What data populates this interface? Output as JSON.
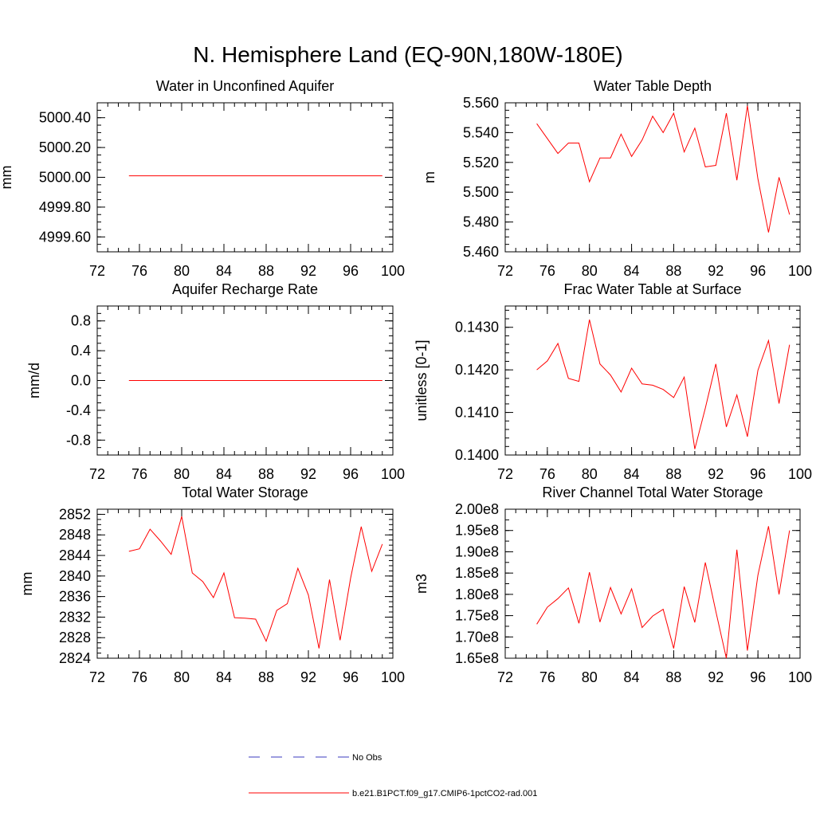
{
  "title": "N. Hemisphere Land (EQ-90N,180W-180E)",
  "colors": {
    "model": "#ff0000",
    "obs": "#3b3bbf"
  },
  "legend": [
    {
      "label": "No Obs",
      "style": "dashed",
      "color": "#3b3bbf"
    },
    {
      "label": "b.e21.B1PCT.f09_g17.CMIP6-1pctCO2-rad.001",
      "style": "solid",
      "color": "#ff0000"
    }
  ],
  "chart_data": [
    {
      "type": "line",
      "title": "Water in Unconfined Aquifer",
      "ylabel": "mm",
      "xlim": [
        72,
        100
      ],
      "ylim": [
        4999.5,
        5000.5
      ],
      "xticks": [
        "72",
        "76",
        "80",
        "84",
        "88",
        "92",
        "96",
        "100"
      ],
      "yticks": [
        "4999.60",
        "4999.80",
        "5000.00",
        "5000.20",
        "5000.40"
      ],
      "yminor": [
        4999.5,
        4999.55,
        4999.6,
        4999.65,
        4999.7,
        4999.75,
        4999.8,
        4999.85,
        4999.9,
        4999.95,
        5000.0,
        5000.05,
        5000.1,
        5000.15,
        5000.2,
        5000.25,
        5000.3,
        5000.35,
        5000.4,
        5000.45,
        5000.5
      ],
      "series": [
        {
          "x": [
            75,
            99
          ],
          "y": [
            5000.01,
            5000.01
          ]
        }
      ]
    },
    {
      "type": "line",
      "title": "Water Table Depth",
      "ylabel": "m",
      "xlim": [
        72,
        100
      ],
      "ylim": [
        5.46,
        5.56
      ],
      "xticks": [
        "72",
        "76",
        "80",
        "84",
        "88",
        "92",
        "96",
        "100"
      ],
      "yticks": [
        "5.460",
        "5.480",
        "5.500",
        "5.520",
        "5.540",
        "5.560"
      ],
      "yminor": [
        5.46,
        5.465,
        5.47,
        5.475,
        5.48,
        5.485,
        5.49,
        5.495,
        5.5,
        5.505,
        5.51,
        5.515,
        5.52,
        5.525,
        5.53,
        5.535,
        5.54,
        5.545,
        5.55,
        5.555,
        5.56
      ],
      "series": [
        {
          "x": [
            75,
            76,
            77,
            78,
            79,
            80,
            81,
            82,
            83,
            84,
            85,
            86,
            87,
            88,
            89,
            90,
            91,
            92,
            93,
            94,
            95,
            96,
            97,
            98,
            99
          ],
          "y": [
            5.546,
            5.536,
            5.526,
            5.533,
            5.533,
            5.507,
            5.523,
            5.523,
            5.539,
            5.524,
            5.535,
            5.551,
            5.54,
            5.553,
            5.527,
            5.543,
            5.517,
            5.518,
            5.553,
            5.508,
            5.558,
            5.509,
            5.473,
            5.51,
            5.485
          ]
        }
      ]
    },
    {
      "type": "line",
      "title": "Aquifer Recharge Rate",
      "ylabel": "mm/d",
      "xlim": [
        72,
        100
      ],
      "ylim": [
        -1.0,
        1.0
      ],
      "xticks": [
        "72",
        "76",
        "80",
        "84",
        "88",
        "92",
        "96",
        "100"
      ],
      "yticks": [
        "-0.8",
        "-0.4",
        "0.0",
        "0.4",
        "0.8"
      ],
      "yminor": [
        -1.0,
        -0.9,
        -0.8,
        -0.7,
        -0.6,
        -0.5,
        -0.4,
        -0.3,
        -0.2,
        -0.1,
        0.0,
        0.1,
        0.2,
        0.3,
        0.4,
        0.5,
        0.6,
        0.7,
        0.8,
        0.9,
        1.0
      ],
      "series": [
        {
          "x": [
            75,
            99
          ],
          "y": [
            0.0,
            0.0
          ]
        }
      ]
    },
    {
      "type": "line",
      "title": "Frac Water Table at Surface",
      "ylabel": "unitless [0-1]",
      "xlim": [
        72,
        100
      ],
      "ylim": [
        0.14,
        0.1435
      ],
      "xticks": [
        "72",
        "76",
        "80",
        "84",
        "88",
        "92",
        "96",
        "100"
      ],
      "yticks": [
        "0.1400",
        "0.1410",
        "0.1420",
        "0.1430"
      ],
      "yminor": [
        0.14,
        0.1402,
        0.1404,
        0.1406,
        0.1408,
        0.141,
        0.1412,
        0.1414,
        0.1416,
        0.1418,
        0.142,
        0.1422,
        0.1424,
        0.1426,
        0.1428,
        0.143,
        0.1432,
        0.1434
      ],
      "series": [
        {
          "x": [
            75,
            76,
            77,
            78,
            79,
            80,
            81,
            82,
            83,
            84,
            85,
            86,
            87,
            88,
            89,
            90,
            91,
            92,
            93,
            94,
            95,
            96,
            97,
            98,
            99
          ],
          "y": [
            0.142,
            0.14221,
            0.14262,
            0.1418,
            0.14173,
            0.14318,
            0.14214,
            0.14188,
            0.14148,
            0.14204,
            0.14167,
            0.14164,
            0.14154,
            0.14135,
            0.14183,
            0.14014,
            0.1411,
            0.14214,
            0.14066,
            0.14141,
            0.14043,
            0.14199,
            0.14269,
            0.14121,
            0.14259
          ]
        }
      ]
    },
    {
      "type": "line",
      "title": "Total Water Storage",
      "ylabel": "mm",
      "xlim": [
        72,
        100
      ],
      "ylim": [
        2824,
        2853
      ],
      "xticks": [
        "72",
        "76",
        "80",
        "84",
        "88",
        "92",
        "96",
        "100"
      ],
      "yticks": [
        "2824",
        "2828",
        "2832",
        "2836",
        "2840",
        "2844",
        "2848",
        "2852"
      ],
      "yminor": [
        2824,
        2825,
        2826,
        2827,
        2828,
        2829,
        2830,
        2831,
        2832,
        2833,
        2834,
        2835,
        2836,
        2837,
        2838,
        2839,
        2840,
        2841,
        2842,
        2843,
        2844,
        2845,
        2846,
        2847,
        2848,
        2849,
        2850,
        2851,
        2852,
        2853
      ],
      "series": [
        {
          "x": [
            75,
            76,
            77,
            78,
            79,
            80,
            81,
            82,
            83,
            84,
            85,
            86,
            87,
            88,
            89,
            90,
            91,
            92,
            93,
            94,
            95,
            96,
            97,
            98,
            99
          ],
          "y": [
            2844.8,
            2845.3,
            2849.1,
            2846.8,
            2844.2,
            2851.6,
            2840.6,
            2838.9,
            2835.8,
            2840.6,
            2831.9,
            2831.8,
            2831.6,
            2827.3,
            2833.3,
            2834.6,
            2841.5,
            2836.3,
            2825.9,
            2839.3,
            2827.5,
            2839.6,
            2849.6,
            2840.9,
            2846.2
          ]
        }
      ]
    },
    {
      "type": "line",
      "title": "River Channel Total Water Storage",
      "ylabel": "m3",
      "xlim": [
        72,
        100
      ],
      "ylim": [
        165000000,
        200000000
      ],
      "xticks": [
        "72",
        "76",
        "80",
        "84",
        "88",
        "92",
        "96",
        "100"
      ],
      "yticks": [
        "1.65e8",
        "1.70e8",
        "1.75e8",
        "1.80e8",
        "1.85e8",
        "1.90e8",
        "1.95e8",
        "2.00e8"
      ],
      "yminor": [
        165000000,
        167500000,
        170000000,
        172500000,
        175000000,
        177500000,
        180000000,
        182500000,
        185000000,
        187500000,
        190000000,
        192500000,
        195000000,
        197500000,
        200000000
      ],
      "series": [
        {
          "x": [
            75,
            76,
            77,
            78,
            79,
            80,
            81,
            82,
            83,
            84,
            85,
            86,
            87,
            88,
            89,
            90,
            91,
            92,
            93,
            94,
            95,
            96,
            97,
            98,
            99
          ],
          "y": [
            173000000,
            177000000,
            179000000,
            181500000,
            173200000,
            185200000,
            173500000,
            181600000,
            175400000,
            181300000,
            172200000,
            174900000,
            176500000,
            167300000,
            181800000,
            173400000,
            187500000,
            176000000,
            165000000,
            190500000,
            166800000,
            184500000,
            196000000,
            180000000,
            195000000
          ]
        }
      ]
    }
  ]
}
